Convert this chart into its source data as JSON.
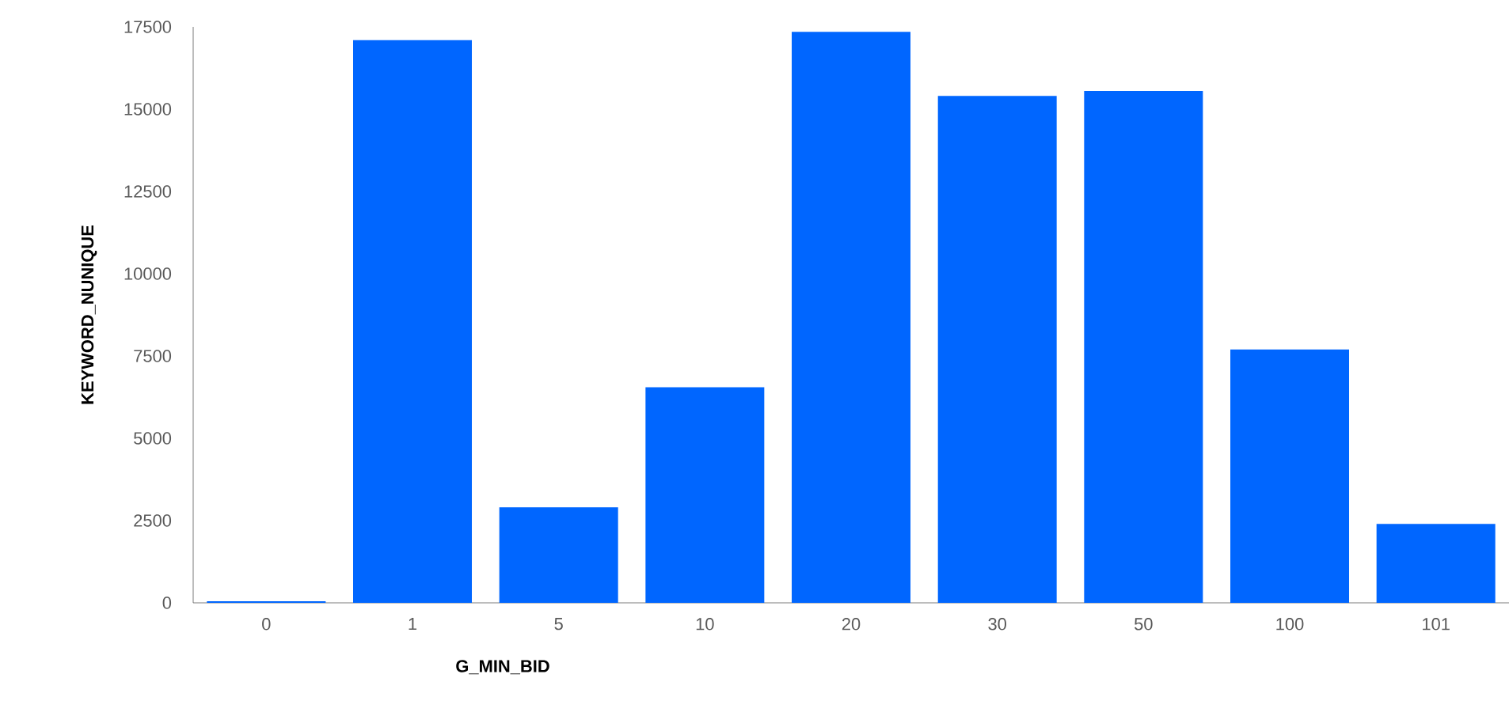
{
  "chart_data": {
    "type": "bar",
    "xlabel": "G_MIN_BID",
    "ylabel": "KEYWORD_NUNIQUE",
    "categories": [
      "0",
      "1",
      "5",
      "10",
      "20",
      "30",
      "50",
      "100",
      "101"
    ],
    "values": [
      50,
      17100,
      2900,
      6550,
      17350,
      15400,
      15550,
      7700,
      2400
    ],
    "color": "#0066ff",
    "ylim": [
      0,
      17500
    ],
    "yticks": [
      0,
      2500,
      5000,
      7500,
      10000,
      12500,
      15000,
      17500
    ]
  }
}
